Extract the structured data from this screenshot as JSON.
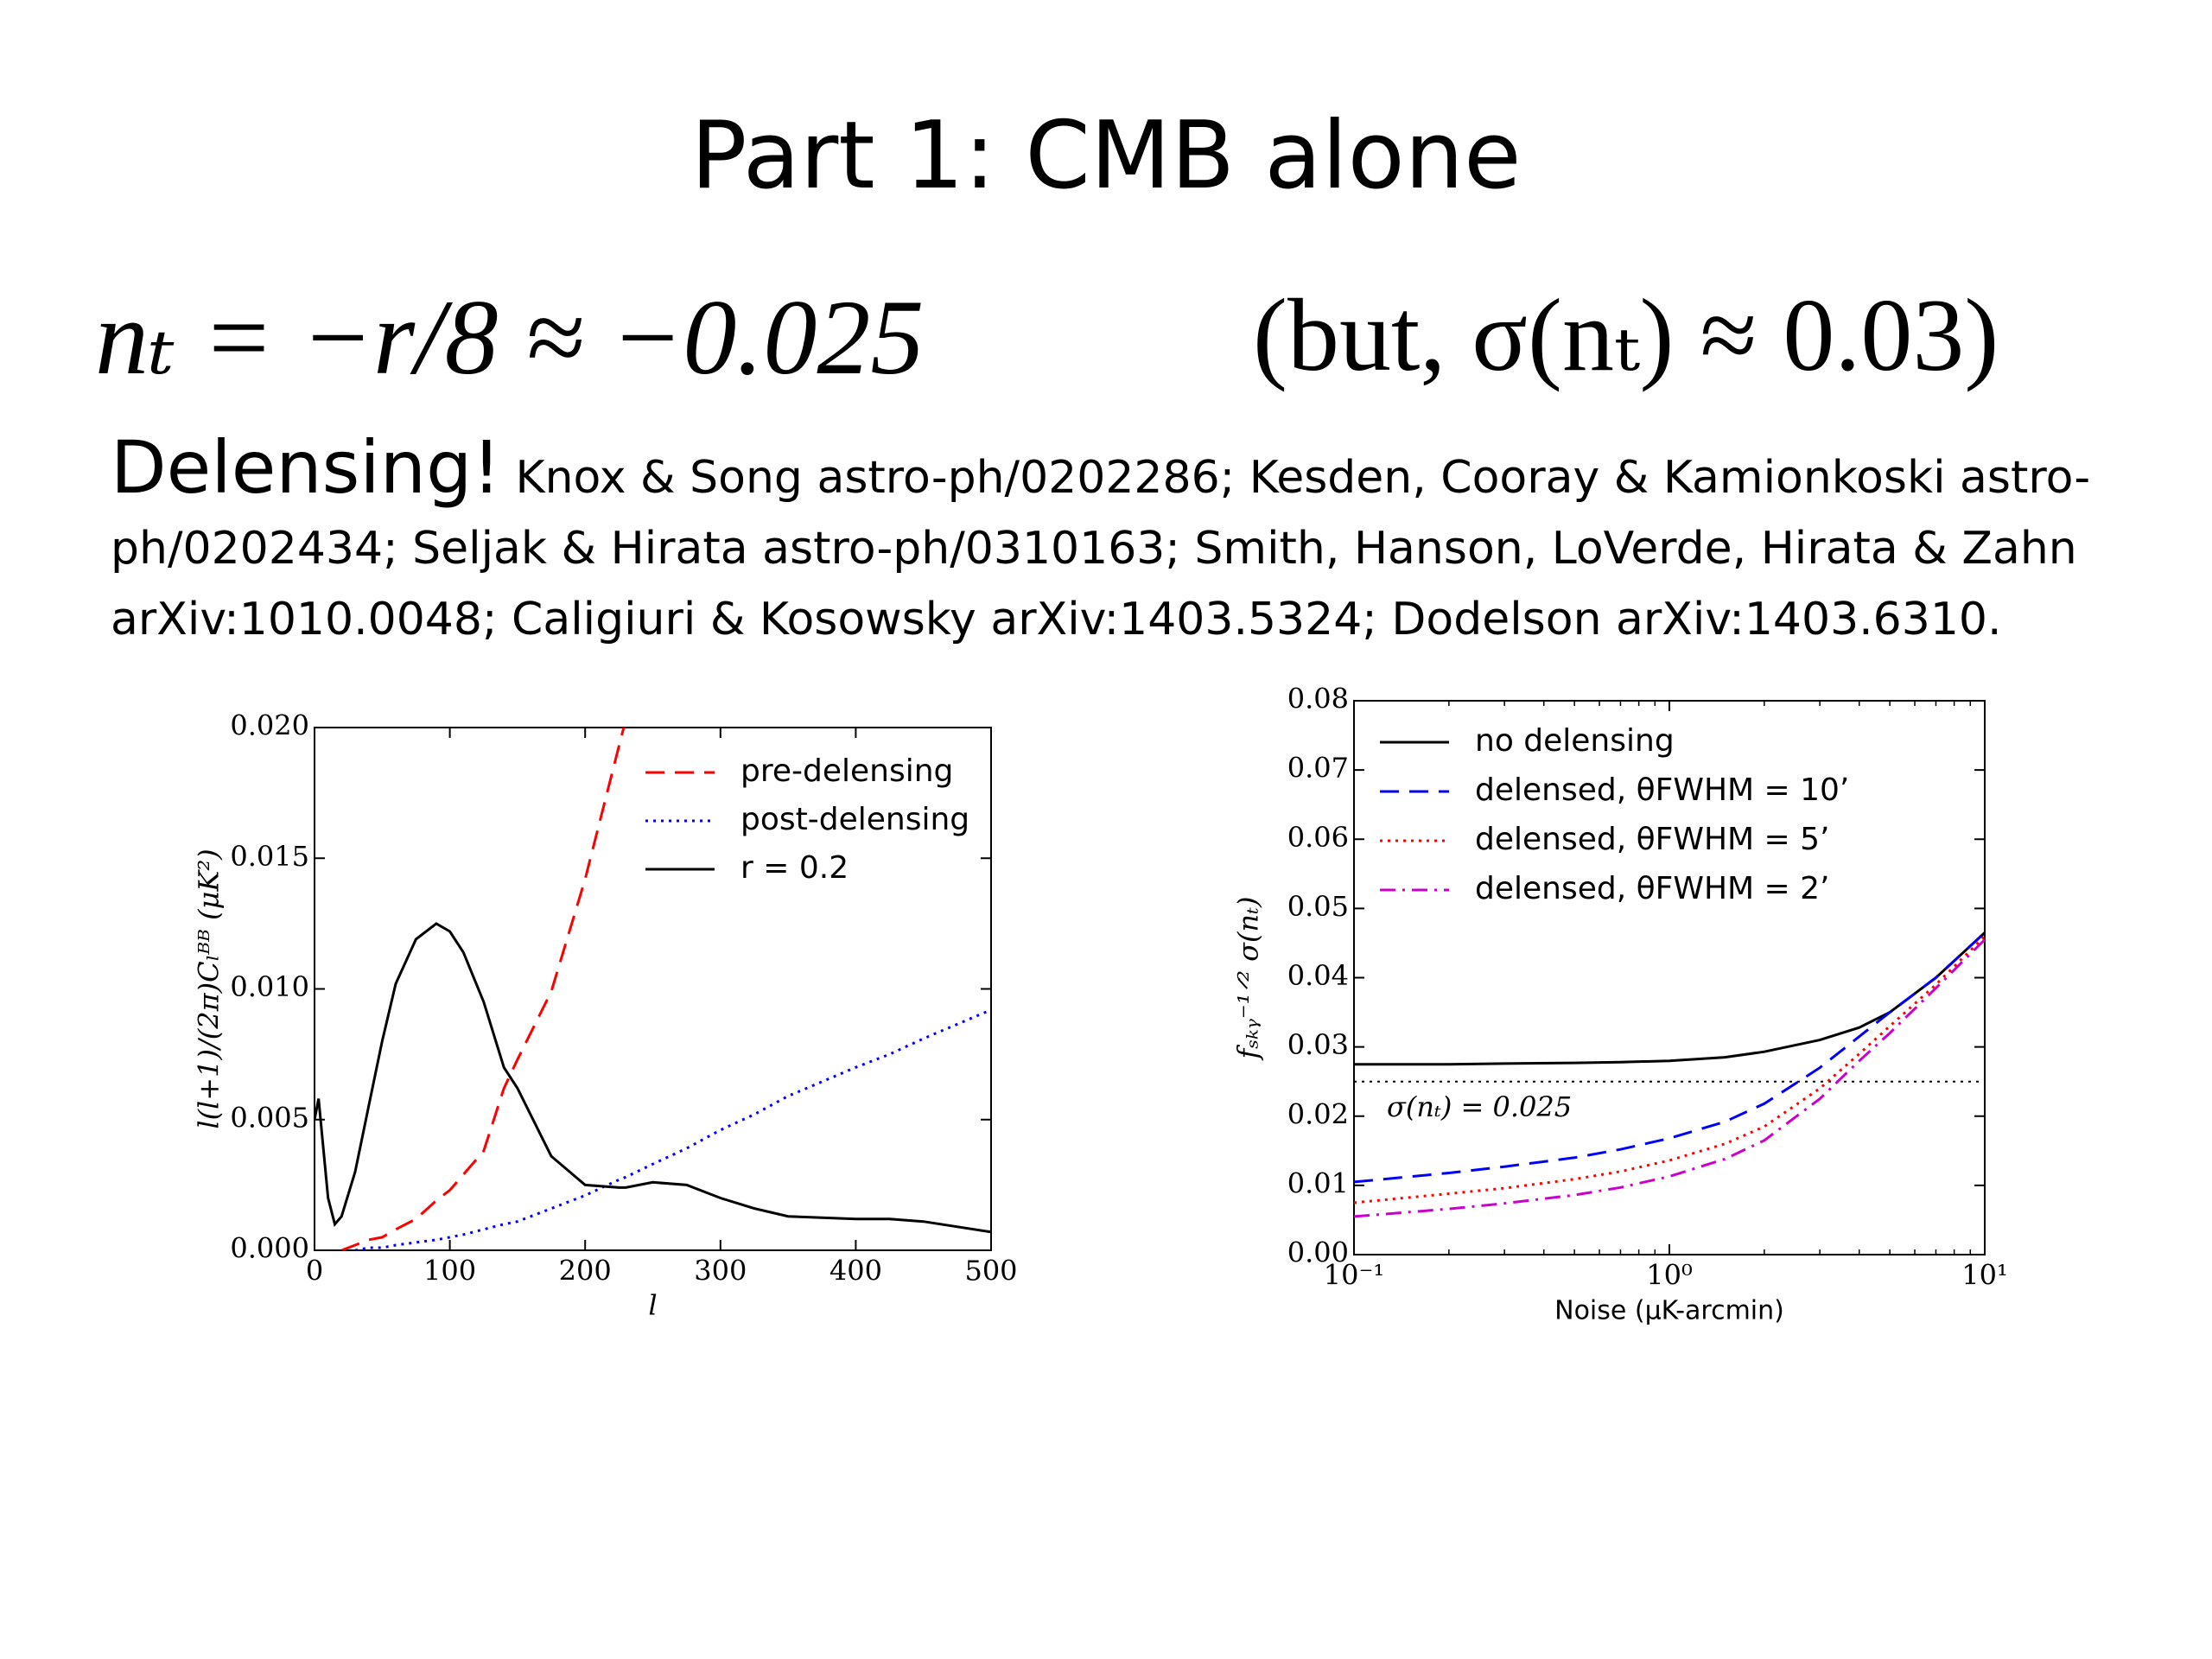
{
  "title": "Part 1: CMB alone",
  "equation": "nₜ = −r/8 ≈ −0.025",
  "equation_note": "(but, σ(nₜ) ≈ 0.03)",
  "heading": "Delensing!",
  "references": "Knox & Song astro-ph/0202286; Kesden, Cooray & Kamionkoski astro-ph/0202434; Seljak & Hirata astro-ph/0310163; Smith, Hanson, LoVerde, Hirata & Zahn arXiv:1010.0048; Caligiuri & Kosowsky arXiv:1403.5324; Dodelson arXiv:1403.6310.",
  "chart_data": [
    {
      "type": "line",
      "xlabel": "l",
      "ylabel": "l(l+1)/(2π)Cₗᴮᴮ (μK²)",
      "x": [
        0,
        3,
        10,
        15,
        20,
        30,
        40,
        50,
        60,
        75,
        90,
        100,
        110,
        125,
        140,
        150,
        175,
        200,
        225,
        230,
        250,
        275,
        300,
        325,
        350,
        400,
        425,
        450,
        500
      ],
      "series": [
        {
          "name": "pre-delensing",
          "color": "#ff0000",
          "style": "dashed",
          "values": [
            null,
            null,
            null,
            null,
            0,
            0.0002,
            0.0004,
            0.0005,
            0.0008,
            0.0012,
            0.0019,
            0.0023,
            0.0029,
            0.0038,
            0.0062,
            0.0073,
            0.0099,
            0.0142,
            0.0193,
            0.0203,
            null,
            null,
            null,
            null,
            null,
            null,
            null,
            null,
            null
          ]
        },
        {
          "name": "post-delensing",
          "color": "#0000ff",
          "style": "dotted",
          "values": [
            null,
            null,
            null,
            null,
            null,
            0,
            0.0001,
            0.0001,
            0.0002,
            0.0003,
            0.0004,
            0.0005,
            0.0006,
            0.0008,
            0.001,
            0.0011,
            0.0016,
            0.0021,
            0.0027,
            0.0028,
            0.0033,
            0.0039,
            0.0046,
            0.0052,
            0.0059,
            0.007,
            0.0075,
            0.0081,
            0.0092
          ]
        },
        {
          "name": "r = 0.2",
          "color": "#000000",
          "style": "solid",
          "values": [
            0.005,
            0.0058,
            0.002,
            0.001,
            0.0013,
            0.003,
            0.0055,
            0.008,
            0.0102,
            0.0119,
            0.0125,
            0.0122,
            0.0114,
            0.0095,
            0.007,
            0.0062,
            0.0036,
            0.0025,
            0.0024,
            0.0024,
            0.0026,
            0.0025,
            0.002,
            0.0016,
            0.0013,
            0.0012,
            0.0012,
            0.0011,
            0.0007
          ]
        }
      ],
      "xlim": [
        0,
        500
      ],
      "xticks": [
        0,
        100,
        200,
        300,
        400,
        500
      ],
      "ylim": [
        0,
        0.02
      ],
      "yticks": [
        {
          "value": 0,
          "label": "0.000"
        },
        {
          "value": 0.005,
          "label": "0.005"
        },
        {
          "value": 0.01,
          "label": "0.010"
        },
        {
          "value": 0.015,
          "label": "0.015"
        },
        {
          "value": 0.02,
          "label": "0.020"
        }
      ],
      "log_x": false,
      "grid": false,
      "legend": "upper right"
    },
    {
      "type": "line",
      "xlabel": "Noise (μK-arcmin)",
      "ylabel": "fₛₖᵧ⁻¹ᐟ² σ(nₜ)",
      "x": [
        0.1,
        0.2,
        0.3,
        0.5,
        0.7,
        1,
        1.5,
        2,
        3,
        4,
        5,
        7,
        10
      ],
      "series": [
        {
          "name": "no delensing",
          "color": "#000000",
          "style": "solid",
          "values": [
            0.0275,
            0.0275,
            0.0276,
            0.0277,
            0.0278,
            0.028,
            0.0285,
            0.0293,
            0.031,
            0.0328,
            0.035,
            0.04,
            0.0465
          ]
        },
        {
          "name": "delensed, θFWHM = 10’",
          "color": "#0000ff",
          "style": "dashed",
          "values": [
            0.0105,
            0.0118,
            0.0127,
            0.014,
            0.0152,
            0.0168,
            0.0192,
            0.0218,
            0.027,
            0.0315,
            0.035,
            0.04,
            0.0465
          ]
        },
        {
          "name": "delensed, θFWHM = 5’",
          "color": "#ff0000",
          "style": "dotted",
          "values": [
            0.0075,
            0.0088,
            0.0096,
            0.0109,
            0.012,
            0.0136,
            0.016,
            0.0185,
            0.024,
            0.029,
            0.033,
            0.039,
            0.046
          ]
        },
        {
          "name": "delensed, θFWHM = 2’",
          "color": "#cc00cc",
          "style": "dashdot",
          "values": [
            0.0055,
            0.0066,
            0.0074,
            0.0086,
            0.0097,
            0.0113,
            0.0138,
            0.0165,
            0.0225,
            0.028,
            0.032,
            0.0385,
            0.0455
          ]
        }
      ],
      "hline": 0.025,
      "annotation": "σ(nₜ) = 0.025",
      "xlim": [
        0.1,
        10
      ],
      "xticks": [
        {
          "value": 0.1,
          "label": "10⁻¹"
        },
        {
          "value": 1,
          "label": "10⁰"
        },
        {
          "value": 10,
          "label": "10¹"
        }
      ],
      "ylim": [
        0,
        0.08
      ],
      "yticks": [
        {
          "value": 0,
          "label": "0.00"
        },
        {
          "value": 0.01,
          "label": "0.01"
        },
        {
          "value": 0.02,
          "label": "0.02"
        },
        {
          "value": 0.03,
          "label": "0.03"
        },
        {
          "value": 0.04,
          "label": "0.04"
        },
        {
          "value": 0.05,
          "label": "0.05"
        },
        {
          "value": 0.06,
          "label": "0.06"
        },
        {
          "value": 0.07,
          "label": "0.07"
        },
        {
          "value": 0.08,
          "label": "0.08"
        }
      ],
      "log_x": true,
      "grid": false,
      "legend": "upper left"
    }
  ]
}
